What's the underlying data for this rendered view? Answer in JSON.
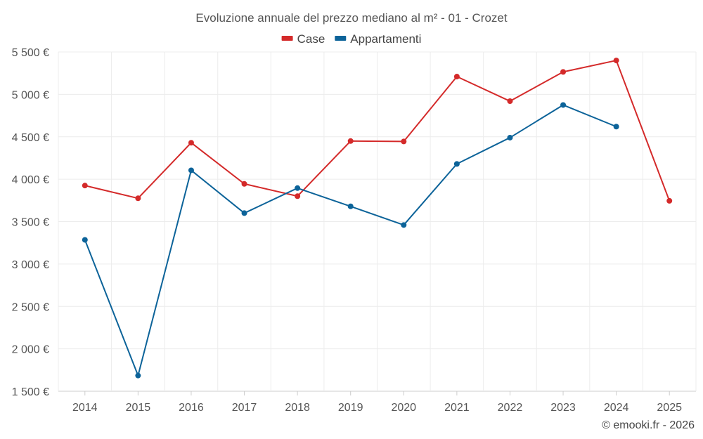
{
  "chart_data": {
    "type": "line",
    "title": "Evoluzione annuale del prezzo mediano al m² - 01 - Crozet",
    "categories": [
      "2014",
      "2015",
      "2016",
      "2017",
      "2018",
      "2019",
      "2020",
      "2021",
      "2022",
      "2023",
      "2024",
      "2025"
    ],
    "series": [
      {
        "name": "Case",
        "color": "#d42a2a",
        "values": [
          3925,
          3775,
          4430,
          3945,
          3800,
          4450,
          4445,
          5210,
          4920,
          5265,
          5400,
          3745
        ]
      },
      {
        "name": "Appartamenti",
        "color": "#0c6399",
        "values": [
          3285,
          1685,
          4105,
          3600,
          3895,
          3680,
          3460,
          4180,
          4490,
          4875,
          4620,
          null
        ]
      }
    ],
    "ylim": [
      1500,
      5500
    ],
    "yticks": [
      1500,
      2000,
      2500,
      3000,
      3500,
      4000,
      4500,
      5000,
      5500
    ],
    "ytick_labels": [
      "1 500 €",
      "2 000 €",
      "2 500 €",
      "3 000 €",
      "3 500 €",
      "4 000 €",
      "4 500 €",
      "5 000 €",
      "5 500 €"
    ],
    "xlabel": "",
    "ylabel": "",
    "legend": "top-center",
    "grid": true
  },
  "credit": "© emooki.fr - 2026"
}
